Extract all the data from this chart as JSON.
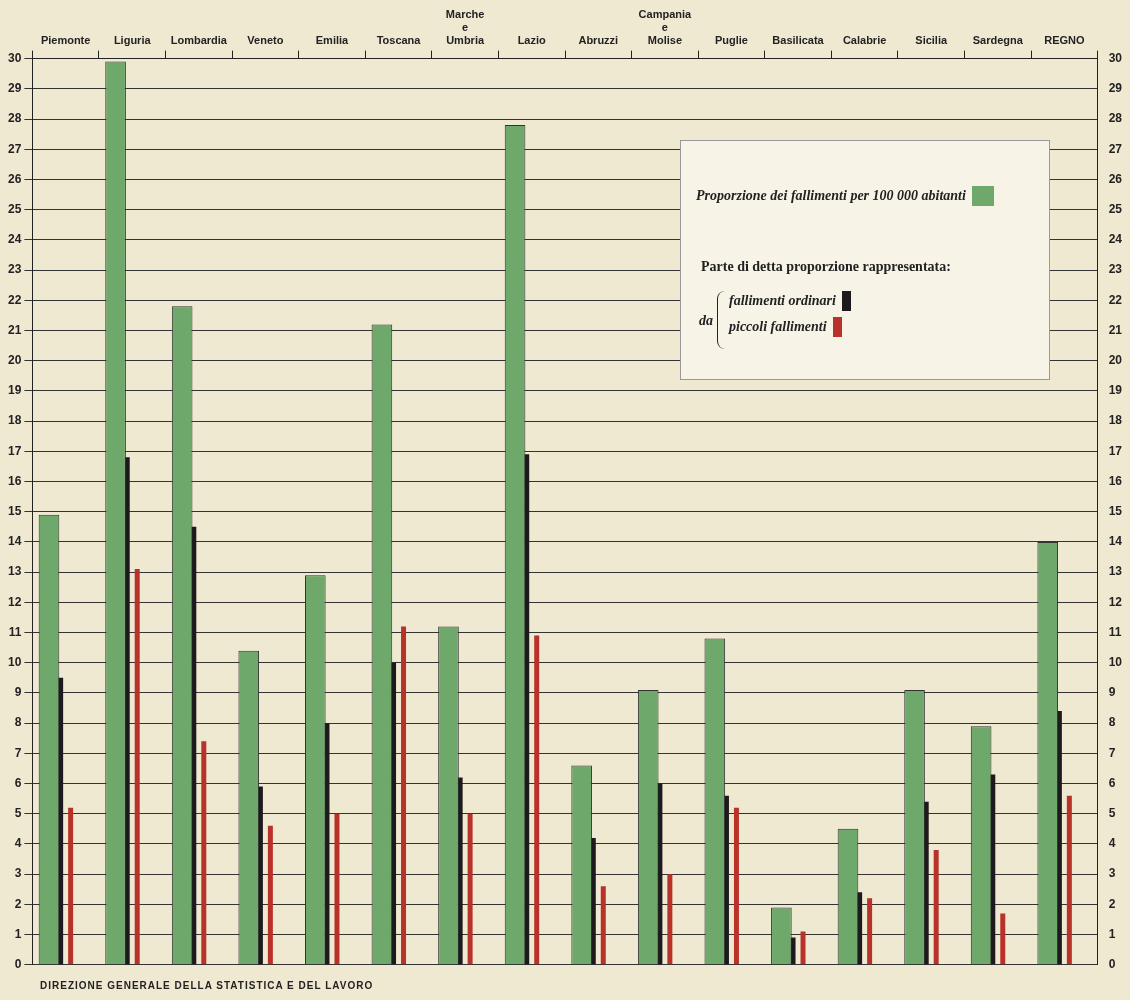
{
  "chart_data": {
    "type": "bar",
    "categories": [
      "Piemonte",
      "Liguria",
      "Lombardia",
      "Veneto",
      "Emilia",
      "Toscana",
      "Marche e Umbria",
      "Lazio",
      "Abruzzi",
      "Campania e Molise",
      "Puglie",
      "Basilicata",
      "Calabrie",
      "Sicilia",
      "Sardegna",
      "REGNO"
    ],
    "series": [
      {
        "name": "Proporzione dei fallimenti per 100 000 abitanti",
        "color": "#6ea86a",
        "values": [
          14.9,
          29.9,
          21.8,
          10.4,
          12.9,
          21.2,
          11.2,
          27.8,
          6.6,
          9.1,
          10.8,
          1.9,
          4.5,
          9.1,
          7.9,
          14.0
        ]
      },
      {
        "name": "fallimenti ordinari",
        "color": "#1c1a1c",
        "values": [
          9.5,
          16.8,
          14.5,
          5.9,
          8.0,
          10.0,
          6.2,
          16.9,
          4.2,
          6.0,
          5.6,
          0.9,
          2.4,
          5.4,
          6.3,
          8.4
        ]
      },
      {
        "name": "piccoli fallimenti",
        "color": "#b8322a",
        "values": [
          5.2,
          13.1,
          7.4,
          4.6,
          5.0,
          11.2,
          5.0,
          10.9,
          2.6,
          3.0,
          5.2,
          1.1,
          2.2,
          3.8,
          1.7,
          5.6
        ]
      }
    ],
    "ylim": [
      0,
      30
    ],
    "yticks": [
      0,
      1,
      2,
      3,
      4,
      5,
      6,
      7,
      8,
      9,
      10,
      11,
      12,
      13,
      14,
      15,
      16,
      17,
      18,
      19,
      20,
      21,
      22,
      23,
      24,
      25,
      26,
      27,
      28,
      29,
      30
    ],
    "y2lim": [
      0,
      30
    ],
    "y2ticks": [
      0,
      1,
      2,
      3,
      4,
      5,
      6,
      7,
      8,
      9,
      10,
      11,
      12,
      13,
      14,
      15,
      16,
      17,
      18,
      19,
      20,
      21,
      22,
      23,
      24,
      25,
      26,
      27,
      28,
      29,
      30
    ],
    "grid": "y",
    "legend": "top right",
    "legend_title": "Parte di detta proporzione rappresentata:",
    "annotations": [
      "DIREZIONE GENERALE DELLA STATISTICA E DEL LAVORO",
      "da"
    ]
  }
}
